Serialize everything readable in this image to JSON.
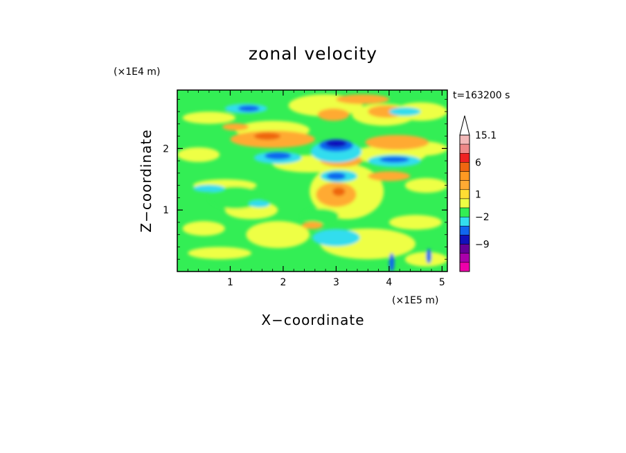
{
  "chart_data": {
    "type": "heatmap",
    "title": "zonal velocity",
    "xlabel": "X−coordinate",
    "ylabel": "Z−coordinate",
    "x_unit": "(×1E5 m)",
    "y_unit": "(×1E4 m)",
    "time_label": "t=163200 s",
    "xlim": [
      0,
      5.1
    ],
    "ylim": [
      0,
      2.95
    ],
    "x_ticks": [
      {
        "value": 1,
        "label": "1"
      },
      {
        "value": 2,
        "label": "2"
      },
      {
        "value": 3,
        "label": "3"
      },
      {
        "value": 4,
        "label": "4"
      },
      {
        "value": 5,
        "label": "5"
      }
    ],
    "y_ticks": [
      {
        "value": 1,
        "label": "1"
      },
      {
        "value": 2,
        "label": "2"
      }
    ],
    "colorbar": {
      "colors": [
        "#f2b8b8",
        "#ee8888",
        "#ee2222",
        "#ee6611",
        "#ff9922",
        "#ffaa33",
        "#ffdd33",
        "#eeff44",
        "#33ee55",
        "#33ddee",
        "#1166ee",
        "#1111bb",
        "#660099",
        "#aa00aa",
        "#ee00aa"
      ],
      "labels": [
        {
          "text": "15.1",
          "slot": 0
        },
        {
          "text": "6",
          "slot": 3
        },
        {
          "text": "1",
          "slot": 6.5
        },
        {
          "text": "−2",
          "slot": 9
        },
        {
          "text": "−9",
          "slot": 12
        }
      ]
    },
    "field": {
      "background": "#33ee55",
      "blobs": [
        {
          "x": 4.6,
          "z": 2.0,
          "rx": 0.5,
          "rz": 0.12,
          "color": "#eeff44"
        },
        {
          "x": 4.6,
          "z": 2.6,
          "rx": 0.5,
          "rz": 0.15,
          "color": "#eeff44"
        },
        {
          "x": 4.7,
          "z": 1.4,
          "rx": 0.4,
          "rz": 0.12,
          "color": "#eeff44"
        },
        {
          "x": 4.5,
          "z": 0.8,
          "rx": 0.5,
          "rz": 0.12,
          "color": "#eeff44"
        },
        {
          "x": 4.7,
          "z": 0.2,
          "rx": 0.4,
          "rz": 0.12,
          "color": "#eeff44"
        },
        {
          "x": 0.6,
          "z": 2.5,
          "rx": 0.5,
          "rz": 0.1,
          "color": "#eeff44"
        },
        {
          "x": 0.4,
          "z": 1.9,
          "rx": 0.4,
          "rz": 0.12,
          "color": "#eeff44"
        },
        {
          "x": 0.9,
          "z": 1.4,
          "rx": 0.6,
          "rz": 0.1,
          "color": "#eeff44"
        },
        {
          "x": 0.5,
          "z": 0.7,
          "rx": 0.4,
          "rz": 0.12,
          "color": "#eeff44"
        },
        {
          "x": 0.8,
          "z": 0.3,
          "rx": 0.6,
          "rz": 0.1,
          "color": "#eeff44"
        },
        {
          "x": 1.9,
          "z": 0.6,
          "rx": 0.6,
          "rz": 0.22,
          "color": "#eeff44"
        },
        {
          "x": 1.4,
          "z": 1.0,
          "rx": 0.5,
          "rz": 0.15,
          "color": "#eeff44"
        },
        {
          "x": 1.8,
          "z": 2.3,
          "rx": 0.7,
          "rz": 0.15,
          "color": "#eeff44"
        },
        {
          "x": 2.8,
          "z": 2.7,
          "rx": 0.7,
          "rz": 0.18,
          "color": "#eeff44"
        },
        {
          "x": 3.9,
          "z": 2.55,
          "rx": 0.6,
          "rz": 0.18,
          "color": "#eeff44"
        },
        {
          "x": 3.2,
          "z": 1.3,
          "rx": 0.7,
          "rz": 0.45,
          "color": "#eeff44"
        },
        {
          "x": 3.6,
          "z": 0.45,
          "rx": 0.9,
          "rz": 0.25,
          "color": "#eeff44"
        },
        {
          "x": 2.5,
          "z": 1.75,
          "rx": 0.7,
          "rz": 0.14,
          "color": "#eeff44"
        },
        {
          "x": 4.0,
          "z": 1.9,
          "rx": 0.7,
          "rz": 0.15,
          "color": "#eeff44"
        },
        {
          "x": 1.1,
          "z": 1.2,
          "rx": 0.5,
          "rz": 0.18,
          "color": "#33ee55"
        },
        {
          "x": 2.7,
          "z": 0.9,
          "rx": 0.35,
          "rz": 0.12,
          "color": "#33ee55"
        },
        {
          "x": 1.8,
          "z": 2.15,
          "rx": 0.8,
          "rz": 0.14,
          "color": "#ffaa33"
        },
        {
          "x": 4.15,
          "z": 2.1,
          "rx": 0.6,
          "rz": 0.12,
          "color": "#ffaa33"
        },
        {
          "x": 2.95,
          "z": 2.55,
          "rx": 0.3,
          "rz": 0.1,
          "color": "#ffaa33"
        },
        {
          "x": 3.95,
          "z": 2.6,
          "rx": 0.35,
          "rz": 0.1,
          "color": "#ffaa33"
        },
        {
          "x": 1.1,
          "z": 2.35,
          "rx": 0.25,
          "rz": 0.06,
          "color": "#ffaa33"
        },
        {
          "x": 3.0,
          "z": 1.25,
          "rx": 0.38,
          "rz": 0.2,
          "color": "#ffaa33"
        },
        {
          "x": 3.1,
          "z": 1.8,
          "rx": 0.4,
          "rz": 0.1,
          "color": "#ffaa33"
        },
        {
          "x": 4.0,
          "z": 1.55,
          "rx": 0.4,
          "rz": 0.08,
          "color": "#ffaa33"
        },
        {
          "x": 2.55,
          "z": 0.75,
          "rx": 0.2,
          "rz": 0.06,
          "color": "#ffaa33"
        },
        {
          "x": 3.5,
          "z": 2.8,
          "rx": 0.5,
          "rz": 0.08,
          "color": "#ffaa33"
        },
        {
          "x": 3.0,
          "z": 1.85,
          "rx": 0.12,
          "rz": 0.05,
          "color": "#ee6611"
        },
        {
          "x": 3.05,
          "z": 1.3,
          "rx": 0.12,
          "rz": 0.07,
          "color": "#ee6611"
        },
        {
          "x": 1.7,
          "z": 2.2,
          "rx": 0.25,
          "rz": 0.06,
          "color": "#ee6611"
        },
        {
          "x": 3.0,
          "z": 1.95,
          "rx": 0.48,
          "rz": 0.18,
          "color": "#33ddee"
        },
        {
          "x": 1.9,
          "z": 1.85,
          "rx": 0.45,
          "rz": 0.1,
          "color": "#33ddee"
        },
        {
          "x": 4.1,
          "z": 1.8,
          "rx": 0.5,
          "rz": 0.1,
          "color": "#33ddee"
        },
        {
          "x": 3.05,
          "z": 1.55,
          "rx": 0.35,
          "rz": 0.1,
          "color": "#33ddee"
        },
        {
          "x": 3.0,
          "z": 0.55,
          "rx": 0.45,
          "rz": 0.14,
          "color": "#33ddee"
        },
        {
          "x": 1.3,
          "z": 2.65,
          "rx": 0.4,
          "rz": 0.08,
          "color": "#33ddee"
        },
        {
          "x": 4.3,
          "z": 2.6,
          "rx": 0.3,
          "rz": 0.07,
          "color": "#33ddee"
        },
        {
          "x": 0.6,
          "z": 1.35,
          "rx": 0.3,
          "rz": 0.06,
          "color": "#33ddee"
        },
        {
          "x": 1.55,
          "z": 1.1,
          "rx": 0.2,
          "rz": 0.06,
          "color": "#33ddee"
        },
        {
          "x": 3.0,
          "z": 2.05,
          "rx": 0.32,
          "rz": 0.1,
          "color": "#1166ee"
        },
        {
          "x": 1.9,
          "z": 1.88,
          "rx": 0.25,
          "rz": 0.06,
          "color": "#1166ee"
        },
        {
          "x": 4.1,
          "z": 1.82,
          "rx": 0.28,
          "rz": 0.05,
          "color": "#1166ee"
        },
        {
          "x": 3.0,
          "z": 1.55,
          "rx": 0.18,
          "rz": 0.06,
          "color": "#1166ee"
        },
        {
          "x": 1.35,
          "z": 2.65,
          "rx": 0.2,
          "rz": 0.05,
          "color": "#1166ee"
        },
        {
          "x": 3.0,
          "z": 2.08,
          "rx": 0.2,
          "rz": 0.06,
          "color": "#1111bb"
        },
        {
          "x": 4.05,
          "z": 0.15,
          "rx": 0.05,
          "rz": 0.15,
          "color": "#1166ee"
        },
        {
          "x": 4.75,
          "z": 0.25,
          "rx": 0.05,
          "rz": 0.12,
          "color": "#1166ee"
        }
      ]
    }
  }
}
